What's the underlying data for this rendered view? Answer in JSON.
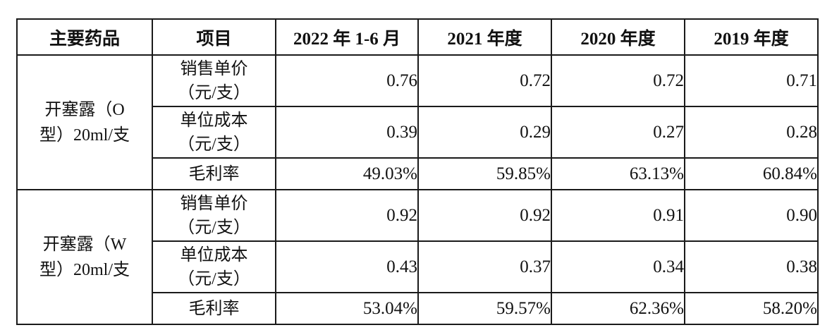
{
  "table": {
    "headers": [
      "主要药品",
      "项目",
      "2022 年 1-6 月",
      "2021 年度",
      "2020 年度",
      "2019 年度"
    ],
    "groups": [
      {
        "drug_line1": "开塞露（O",
        "drug_line2": "型）20ml/支",
        "rows": [
          {
            "item_line1": "销售单价",
            "item_line2": "（元/支）",
            "values": [
              "0.76",
              "0.72",
              "0.72",
              "0.71"
            ]
          },
          {
            "item_line1": "单位成本",
            "item_line2": "（元/支）",
            "values": [
              "0.39",
              "0.29",
              "0.27",
              "0.28"
            ]
          },
          {
            "item_line1": "毛利率",
            "item_line2": "",
            "values": [
              "49.03%",
              "59.85%",
              "63.13%",
              "60.84%"
            ]
          }
        ]
      },
      {
        "drug_line1": "开塞露（W",
        "drug_line2": "型）20ml/支",
        "rows": [
          {
            "item_line1": "销售单价",
            "item_line2": "（元/支）",
            "values": [
              "0.92",
              "0.92",
              "0.91",
              "0.90"
            ]
          },
          {
            "item_line1": "单位成本",
            "item_line2": "（元/支）",
            "values": [
              "0.43",
              "0.37",
              "0.34",
              "0.38"
            ]
          },
          {
            "item_line1": "毛利率",
            "item_line2": "",
            "values": [
              "53.04%",
              "59.57%",
              "62.36%",
              "58.20%"
            ]
          }
        ]
      }
    ]
  }
}
